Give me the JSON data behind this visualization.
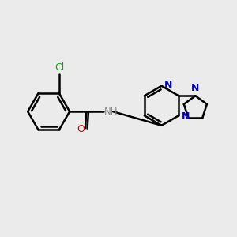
{
  "background_color": "#ebebeb",
  "bond_color": "#000000",
  "N_color": "#0000cc",
  "O_color": "#cc0000",
  "Cl_color": "#00aa00",
  "NH_color": "#888888",
  "line_width": 1.8,
  "figsize": [
    3.0,
    3.0
  ],
  "dpi": 100,
  "xlim": [
    0,
    10
  ],
  "ylim": [
    0,
    10
  ]
}
